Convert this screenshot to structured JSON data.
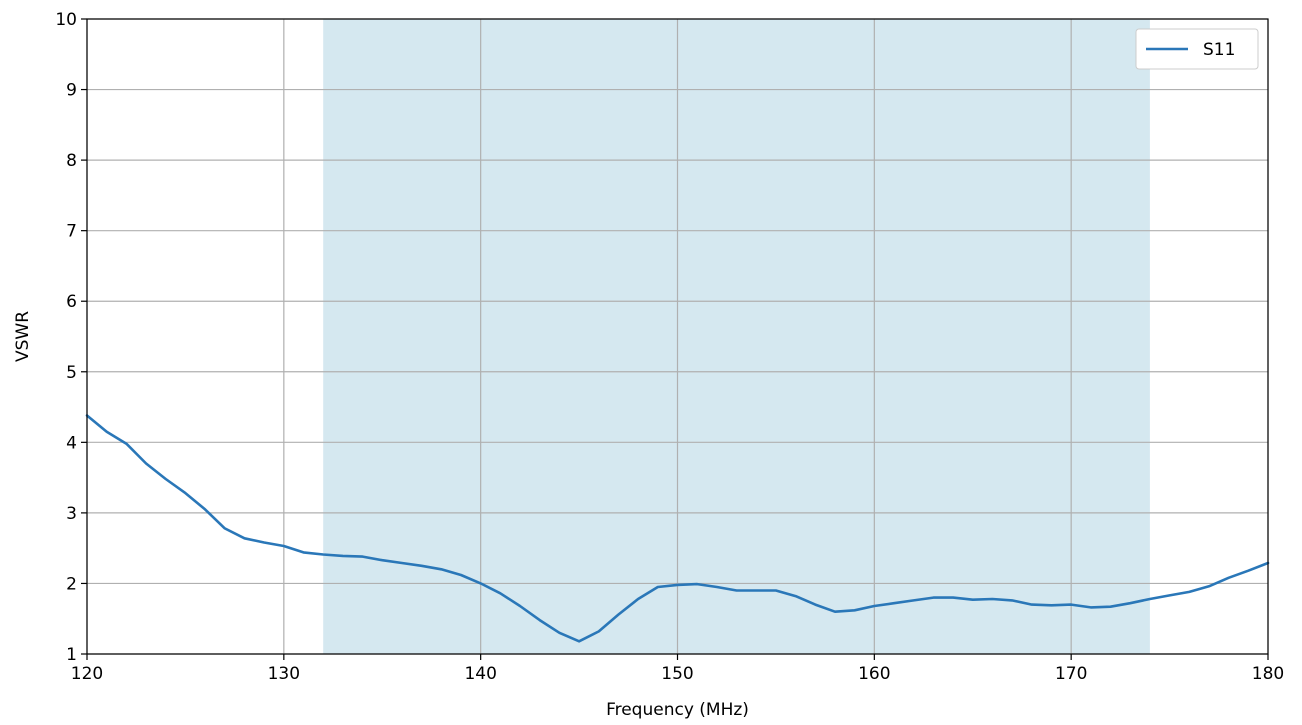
{
  "chart_data": {
    "type": "line",
    "title": "",
    "xlabel": "Frequency (MHz)",
    "ylabel": "VSWR",
    "xlim": [
      120,
      180
    ],
    "ylim": [
      1,
      10
    ],
    "xticks": [
      120,
      130,
      140,
      150,
      160,
      170,
      180
    ],
    "yticks": [
      1,
      2,
      3,
      4,
      5,
      6,
      7,
      8,
      9,
      10
    ],
    "grid": true,
    "legend_position": "top-right",
    "shaded_band": {
      "x_start": 132,
      "x_end": 174,
      "color": "#d5e8f0"
    },
    "series": [
      {
        "name": "S11",
        "color": "#2a77b8",
        "x": [
          120,
          121,
          122,
          123,
          124,
          125,
          126,
          127,
          128,
          129,
          130,
          131,
          132,
          133,
          134,
          135,
          136,
          137,
          138,
          139,
          140,
          141,
          142,
          143,
          144,
          145,
          146,
          147,
          148,
          149,
          150,
          151,
          152,
          153,
          154,
          155,
          156,
          157,
          158,
          159,
          160,
          161,
          162,
          163,
          164,
          165,
          166,
          167,
          168,
          169,
          170,
          171,
          172,
          173,
          174,
          175,
          176,
          177,
          178,
          179,
          180
        ],
        "y": [
          4.38,
          4.15,
          3.98,
          3.7,
          3.48,
          3.28,
          3.05,
          2.78,
          2.64,
          2.58,
          2.53,
          2.44,
          2.41,
          2.39,
          2.38,
          2.33,
          2.29,
          2.25,
          2.2,
          2.12,
          2.0,
          1.86,
          1.68,
          1.48,
          1.3,
          1.18,
          1.32,
          1.56,
          1.78,
          1.95,
          1.98,
          1.99,
          1.95,
          1.9,
          1.9,
          1.9,
          1.82,
          1.7,
          1.6,
          1.62,
          1.68,
          1.72,
          1.76,
          1.8,
          1.8,
          1.77,
          1.78,
          1.76,
          1.7,
          1.69,
          1.7,
          1.66,
          1.67,
          1.72,
          1.78,
          1.83,
          1.88,
          1.96,
          2.08,
          2.18,
          2.29
        ]
      }
    ]
  }
}
